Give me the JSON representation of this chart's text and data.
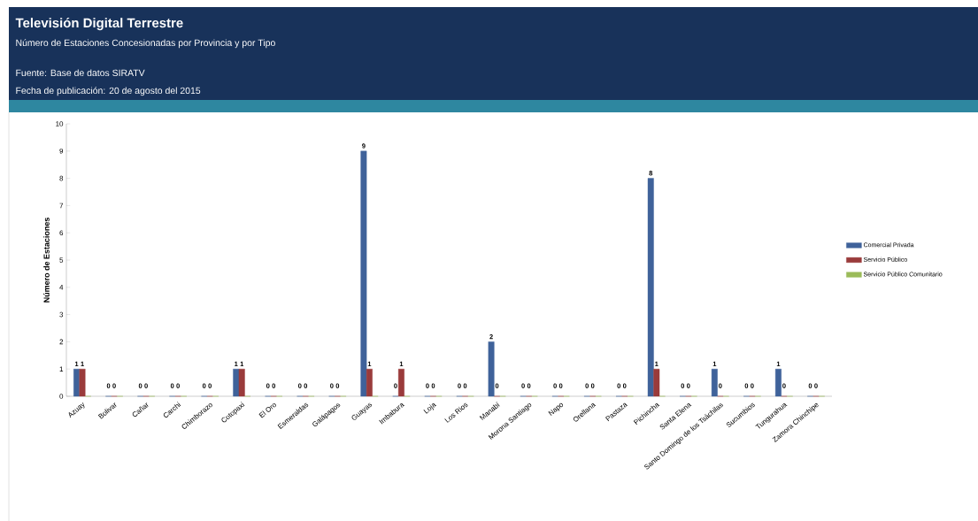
{
  "chart_data": {
    "type": "bar",
    "title": "Televisión Digital Terrestre",
    "subtitle": "Número de Estaciones Concesionadas por Provincia y por Tipo",
    "annotations": [
      "Fuente: Base de datos SIRATV",
      "Fecha de publicación: 20 de agosto del 2015"
    ],
    "ylabel": "Número de Estaciones",
    "categories": [
      "Azuay",
      "Bolivar",
      "Cañar",
      "Carchi",
      "Chimborazo",
      "Cotopaxi",
      "El Oro",
      "Esmeraldas",
      "Galápagos",
      "Guayas",
      "Imbabura",
      "Loja",
      "Los Rios",
      "Manabí",
      "Morona Santiago",
      "Napo",
      "Orellana",
      "Pastaza",
      "Pichincha",
      "Santa Elena",
      "Santo Domingo de los Tsáchilas",
      "Sucumbios",
      "Tungurahua",
      "Zamora Chinchipe"
    ],
    "series": [
      {
        "name": "Comercial Privada",
        "color": "#3f629a",
        "values": [
          1,
          0,
          0,
          0,
          0,
          1,
          0,
          0,
          0,
          9,
          0,
          0,
          0,
          2,
          0,
          0,
          0,
          0,
          8,
          0,
          1,
          0,
          1,
          0
        ],
        "value_labels": [
          "1",
          "0",
          "0",
          "0",
          "0",
          "1",
          "0",
          "0",
          "0",
          "9",
          "0",
          "0",
          "0",
          "2",
          "0",
          "0",
          "0",
          "0",
          "8",
          "0",
          "1",
          "0",
          "1",
          "0"
        ]
      },
      {
        "name": "Servicio Público",
        "color": "#9a3b3b",
        "values": [
          1,
          0,
          0,
          0,
          0,
          1,
          0,
          0,
          0,
          1,
          1,
          0,
          0,
          0,
          0,
          0,
          0,
          0,
          1,
          0,
          0,
          0,
          0,
          0
        ],
        "value_labels": [
          "1",
          "0",
          "0",
          "0",
          "0",
          "1",
          "0",
          "0",
          "0",
          "1",
          "1",
          "0",
          "0",
          "0",
          "0",
          "0",
          "0",
          "0",
          "1",
          "0",
          "0",
          "0",
          "0",
          "0"
        ]
      },
      {
        "name": "Servicio Público Comunitario",
        "color": "#9bbb59",
        "values": [
          0,
          0,
          0,
          0,
          0,
          0,
          0,
          0,
          0,
          0,
          0,
          0,
          0,
          0,
          0,
          0,
          0,
          0,
          0,
          0,
          0,
          0,
          0,
          0
        ]
      }
    ],
    "ylim": [
      0,
      10
    ],
    "yticks": [
      0,
      1,
      2,
      3,
      4,
      5,
      6,
      7,
      8,
      9,
      10
    ],
    "grid": false,
    "legend": "right"
  }
}
